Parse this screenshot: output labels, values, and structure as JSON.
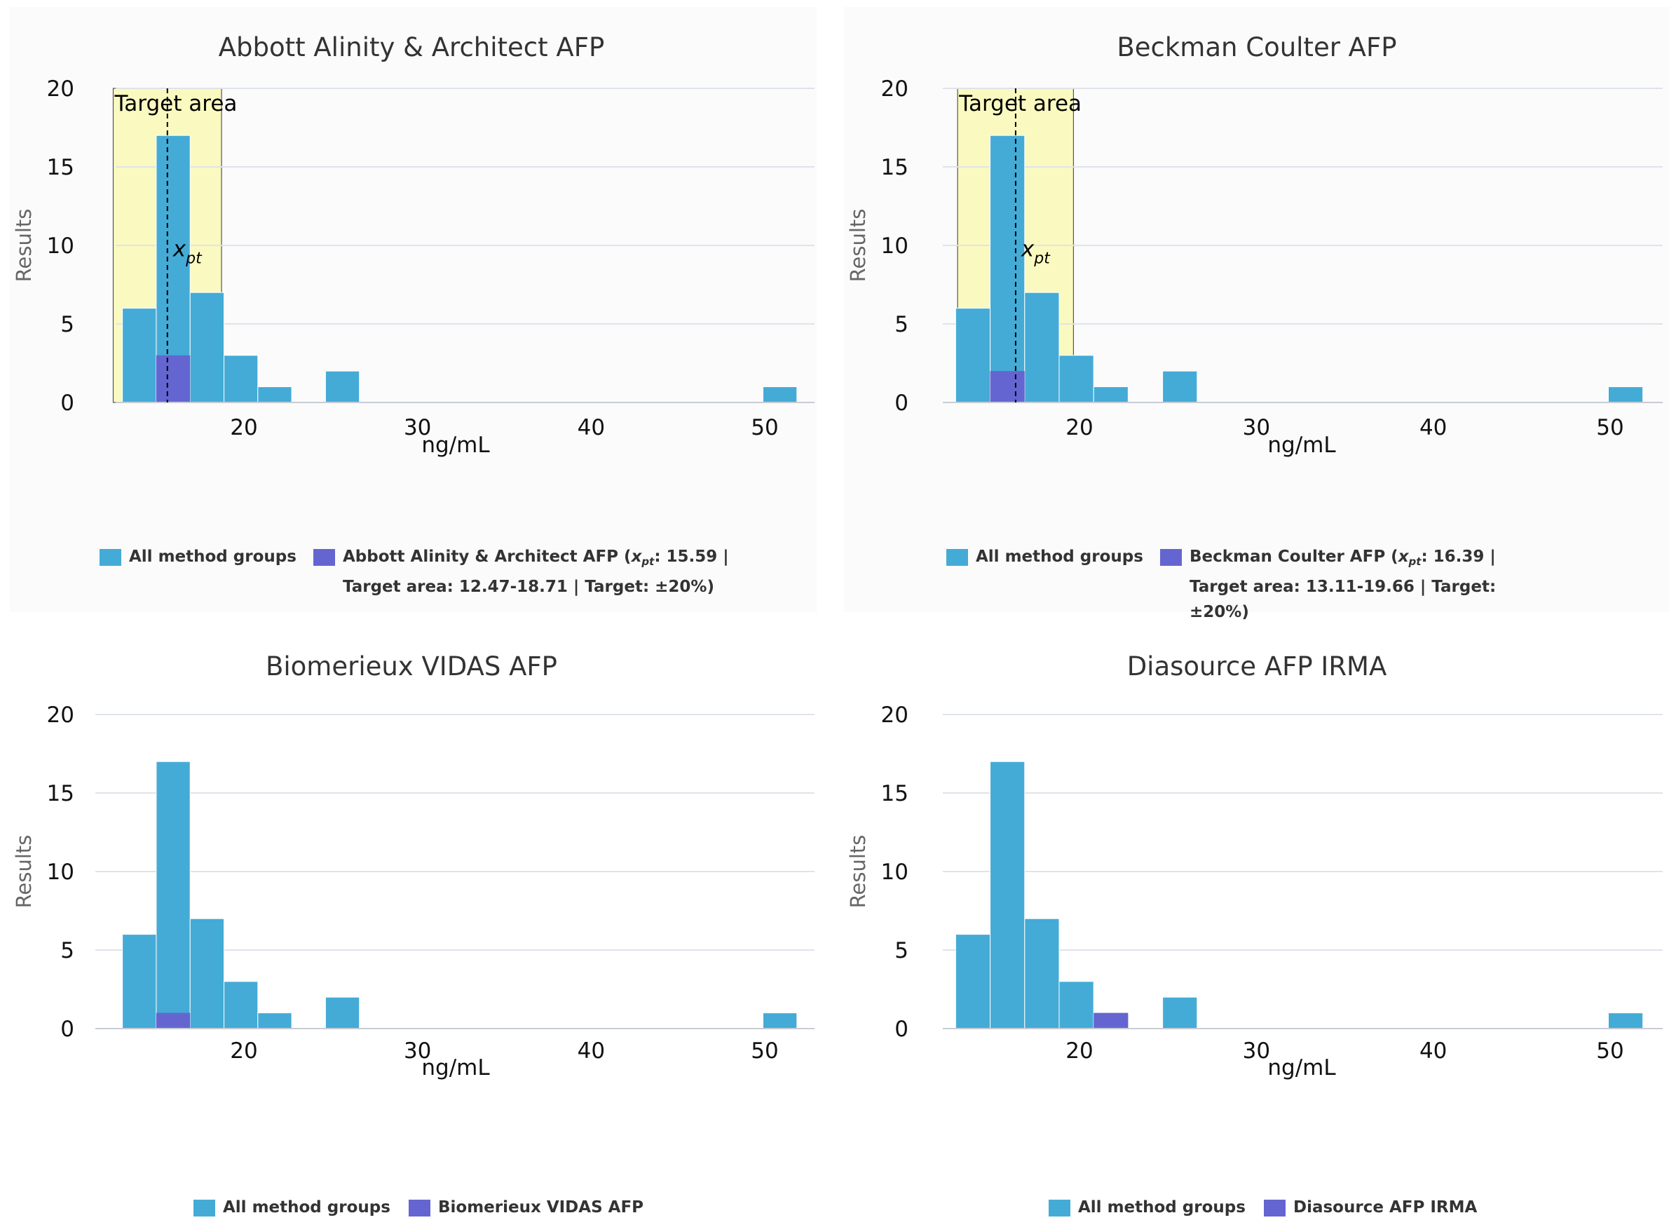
{
  "colors": {
    "all_groups": "#44abd6",
    "method": "#6565d1",
    "target_area": "#fafac0",
    "grid": "#dfe3ea",
    "panel_bg": "#fbfbfc"
  },
  "chart_data": [
    {
      "type": "bar",
      "title": "Abbott Alinity & Architect AFP",
      "xlabel": "ng/mL",
      "ylabel": "Results",
      "ylim": [
        0,
        20
      ],
      "xticks": [
        20,
        30,
        40,
        50
      ],
      "yticks": [
        0,
        5,
        10,
        15,
        20
      ],
      "bin_width": 1.95,
      "series": [
        {
          "name": "All method groups",
          "bin_starts": [
            13.0,
            14.95,
            16.9,
            18.85,
            20.8,
            24.7,
            49.9
          ],
          "values": [
            6,
            17,
            7,
            3,
            1,
            2,
            1
          ]
        },
        {
          "name": "Abbott Alinity & Architect AFP",
          "bin_starts": [
            14.95
          ],
          "values": [
            3
          ]
        }
      ],
      "target_area": {
        "label": "Target area",
        "from": 12.47,
        "to": 18.71
      },
      "xpt": {
        "value": 15.59,
        "label": "x",
        "sub": "pt"
      },
      "legend": {
        "all": "All method groups",
        "method_line1": "Abbott Alinity & Architect AFP (",
        "method_x": "x",
        "method_sub": "pt",
        "method_rest": ": 15.59 | Target area: 12.47-18.71 | Target: ±20%)"
      }
    },
    {
      "type": "bar",
      "title": "Beckman Coulter AFP",
      "xlabel": "ng/mL",
      "ylabel": "Results",
      "ylim": [
        0,
        20
      ],
      "xticks": [
        20,
        30,
        40,
        50
      ],
      "yticks": [
        0,
        5,
        10,
        15,
        20
      ],
      "bin_width": 1.95,
      "series": [
        {
          "name": "All method groups",
          "bin_starts": [
            13.0,
            14.95,
            16.9,
            18.85,
            20.8,
            24.7,
            49.9
          ],
          "values": [
            6,
            17,
            7,
            3,
            1,
            2,
            1
          ]
        },
        {
          "name": "Beckman Coulter AFP",
          "bin_starts": [
            14.95
          ],
          "values": [
            2
          ]
        }
      ],
      "target_area": {
        "label": "Target area",
        "from": 13.11,
        "to": 19.66
      },
      "xpt": {
        "value": 16.39,
        "label": "x",
        "sub": "pt"
      },
      "legend": {
        "all": "All method groups",
        "method_line1": "Beckman Coulter AFP (",
        "method_x": "x",
        "method_sub": "pt",
        "method_rest": ": 16.39 | Target area: 13.11-19.66 | Target: ±20%)"
      }
    },
    {
      "type": "bar",
      "title": "Biomerieux VIDAS AFP",
      "xlabel": "ng/mL",
      "ylabel": "Results",
      "ylim": [
        0,
        20
      ],
      "xticks": [
        20,
        30,
        40,
        50
      ],
      "yticks": [
        0,
        5,
        10,
        15,
        20
      ],
      "bin_width": 1.95,
      "series": [
        {
          "name": "All method groups",
          "bin_starts": [
            13.0,
            14.95,
            16.9,
            18.85,
            20.8,
            24.7,
            49.9
          ],
          "values": [
            6,
            17,
            7,
            3,
            1,
            2,
            1
          ]
        },
        {
          "name": "Biomerieux VIDAS AFP",
          "bin_starts": [
            14.95
          ],
          "values": [
            1
          ]
        }
      ],
      "legend": {
        "all": "All method groups",
        "method": "Biomerieux VIDAS AFP"
      }
    },
    {
      "type": "bar",
      "title": "Diasource AFP IRMA",
      "xlabel": "ng/mL",
      "ylabel": "Results",
      "ylim": [
        0,
        20
      ],
      "xticks": [
        20,
        30,
        40,
        50
      ],
      "yticks": [
        0,
        5,
        10,
        15,
        20
      ],
      "bin_width": 1.95,
      "series": [
        {
          "name": "All method groups",
          "bin_starts": [
            13.0,
            14.95,
            16.9,
            18.85,
            20.8,
            24.7,
            49.9
          ],
          "values": [
            6,
            17,
            7,
            3,
            1,
            2,
            1
          ]
        },
        {
          "name": "Diasource AFP IRMA",
          "bin_starts": [
            20.8
          ],
          "values": [
            1
          ]
        }
      ],
      "legend": {
        "all": "All method groups",
        "method": "Diasource AFP IRMA"
      }
    }
  ]
}
